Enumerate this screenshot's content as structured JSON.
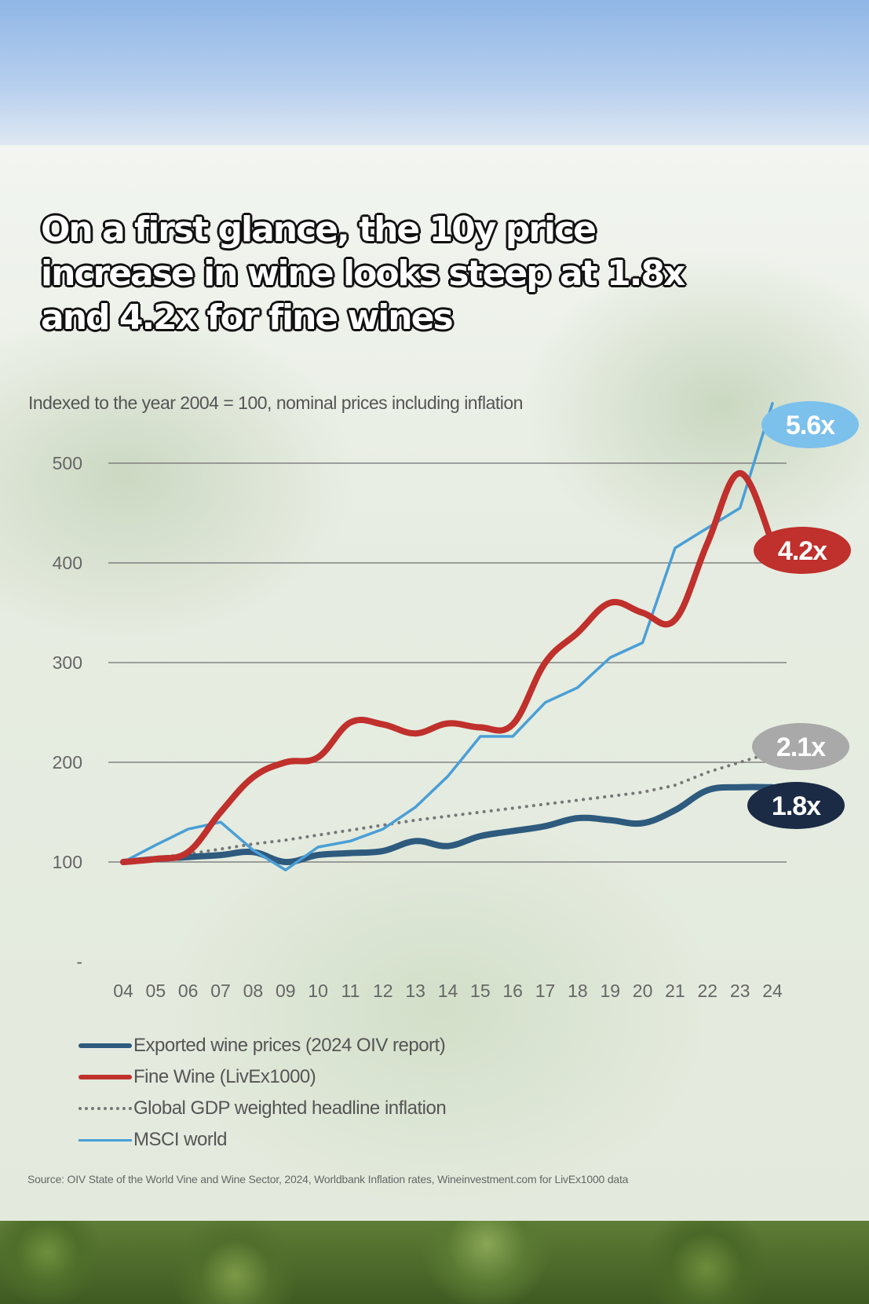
{
  "headline": "On a first glance, the 10y price increase in wine looks steep at 1.8x and 4.2x for fine wines",
  "subtitle": "Indexed to the year 2004 = 100, nominal prices including inflation",
  "source": "Source: OIV State of the World Vine and Wine Sector, 2024, Worldbank Inflation rates, Wineinvestment.com for LivEx1000 data",
  "chart_data": {
    "type": "line",
    "title": "Indexed to the year 2004 = 100, nominal prices including inflation",
    "xlabel": "",
    "ylabel": "",
    "ylim": [
      0,
      500
    ],
    "yticks": [
      "-",
      "100",
      "200",
      "300",
      "400",
      "500"
    ],
    "categories": [
      "04",
      "05",
      "06",
      "07",
      "08",
      "09",
      "10",
      "11",
      "12",
      "13",
      "14",
      "15",
      "16",
      "17",
      "18",
      "19",
      "20",
      "21",
      "22",
      "23",
      "24"
    ],
    "grid": true,
    "series": [
      {
        "name": "Exported wine prices (2024 OIV report)",
        "color": "#2e5a7e",
        "style": "thick",
        "end_label": "1.8x",
        "values": [
          100,
          103,
          105,
          107,
          110,
          100,
          107,
          109,
          111,
          121,
          116,
          126,
          131,
          136,
          144,
          142,
          139,
          152,
          172,
          175,
          175
        ]
      },
      {
        "name": "Fine Wine (LivEx1000)",
        "color": "#c0302c",
        "style": "thick",
        "end_label": "4.2x",
        "values": [
          100,
          103,
          110,
          150,
          185,
          200,
          205,
          240,
          238,
          229,
          239,
          235,
          238,
          300,
          330,
          360,
          350,
          343,
          420,
          490,
          420
        ]
      },
      {
        "name": "Global GDP weighted headline inflation",
        "color": "#777777",
        "style": "dotted",
        "end_label": "2.1x",
        "values": [
          100,
          104,
          108,
          113,
          118,
          122,
          127,
          132,
          137,
          142,
          146,
          150,
          154,
          158,
          162,
          166,
          170,
          177,
          190,
          200,
          210
        ]
      },
      {
        "name": "MSCI world",
        "color": "#4a9fd6",
        "style": "thin",
        "end_label": "5.6x",
        "values": [
          100,
          117,
          133,
          140,
          112,
          92,
          115,
          121,
          133,
          155,
          186,
          226,
          226,
          260,
          275,
          305,
          320,
          415,
          435,
          455,
          560
        ]
      }
    ]
  }
}
